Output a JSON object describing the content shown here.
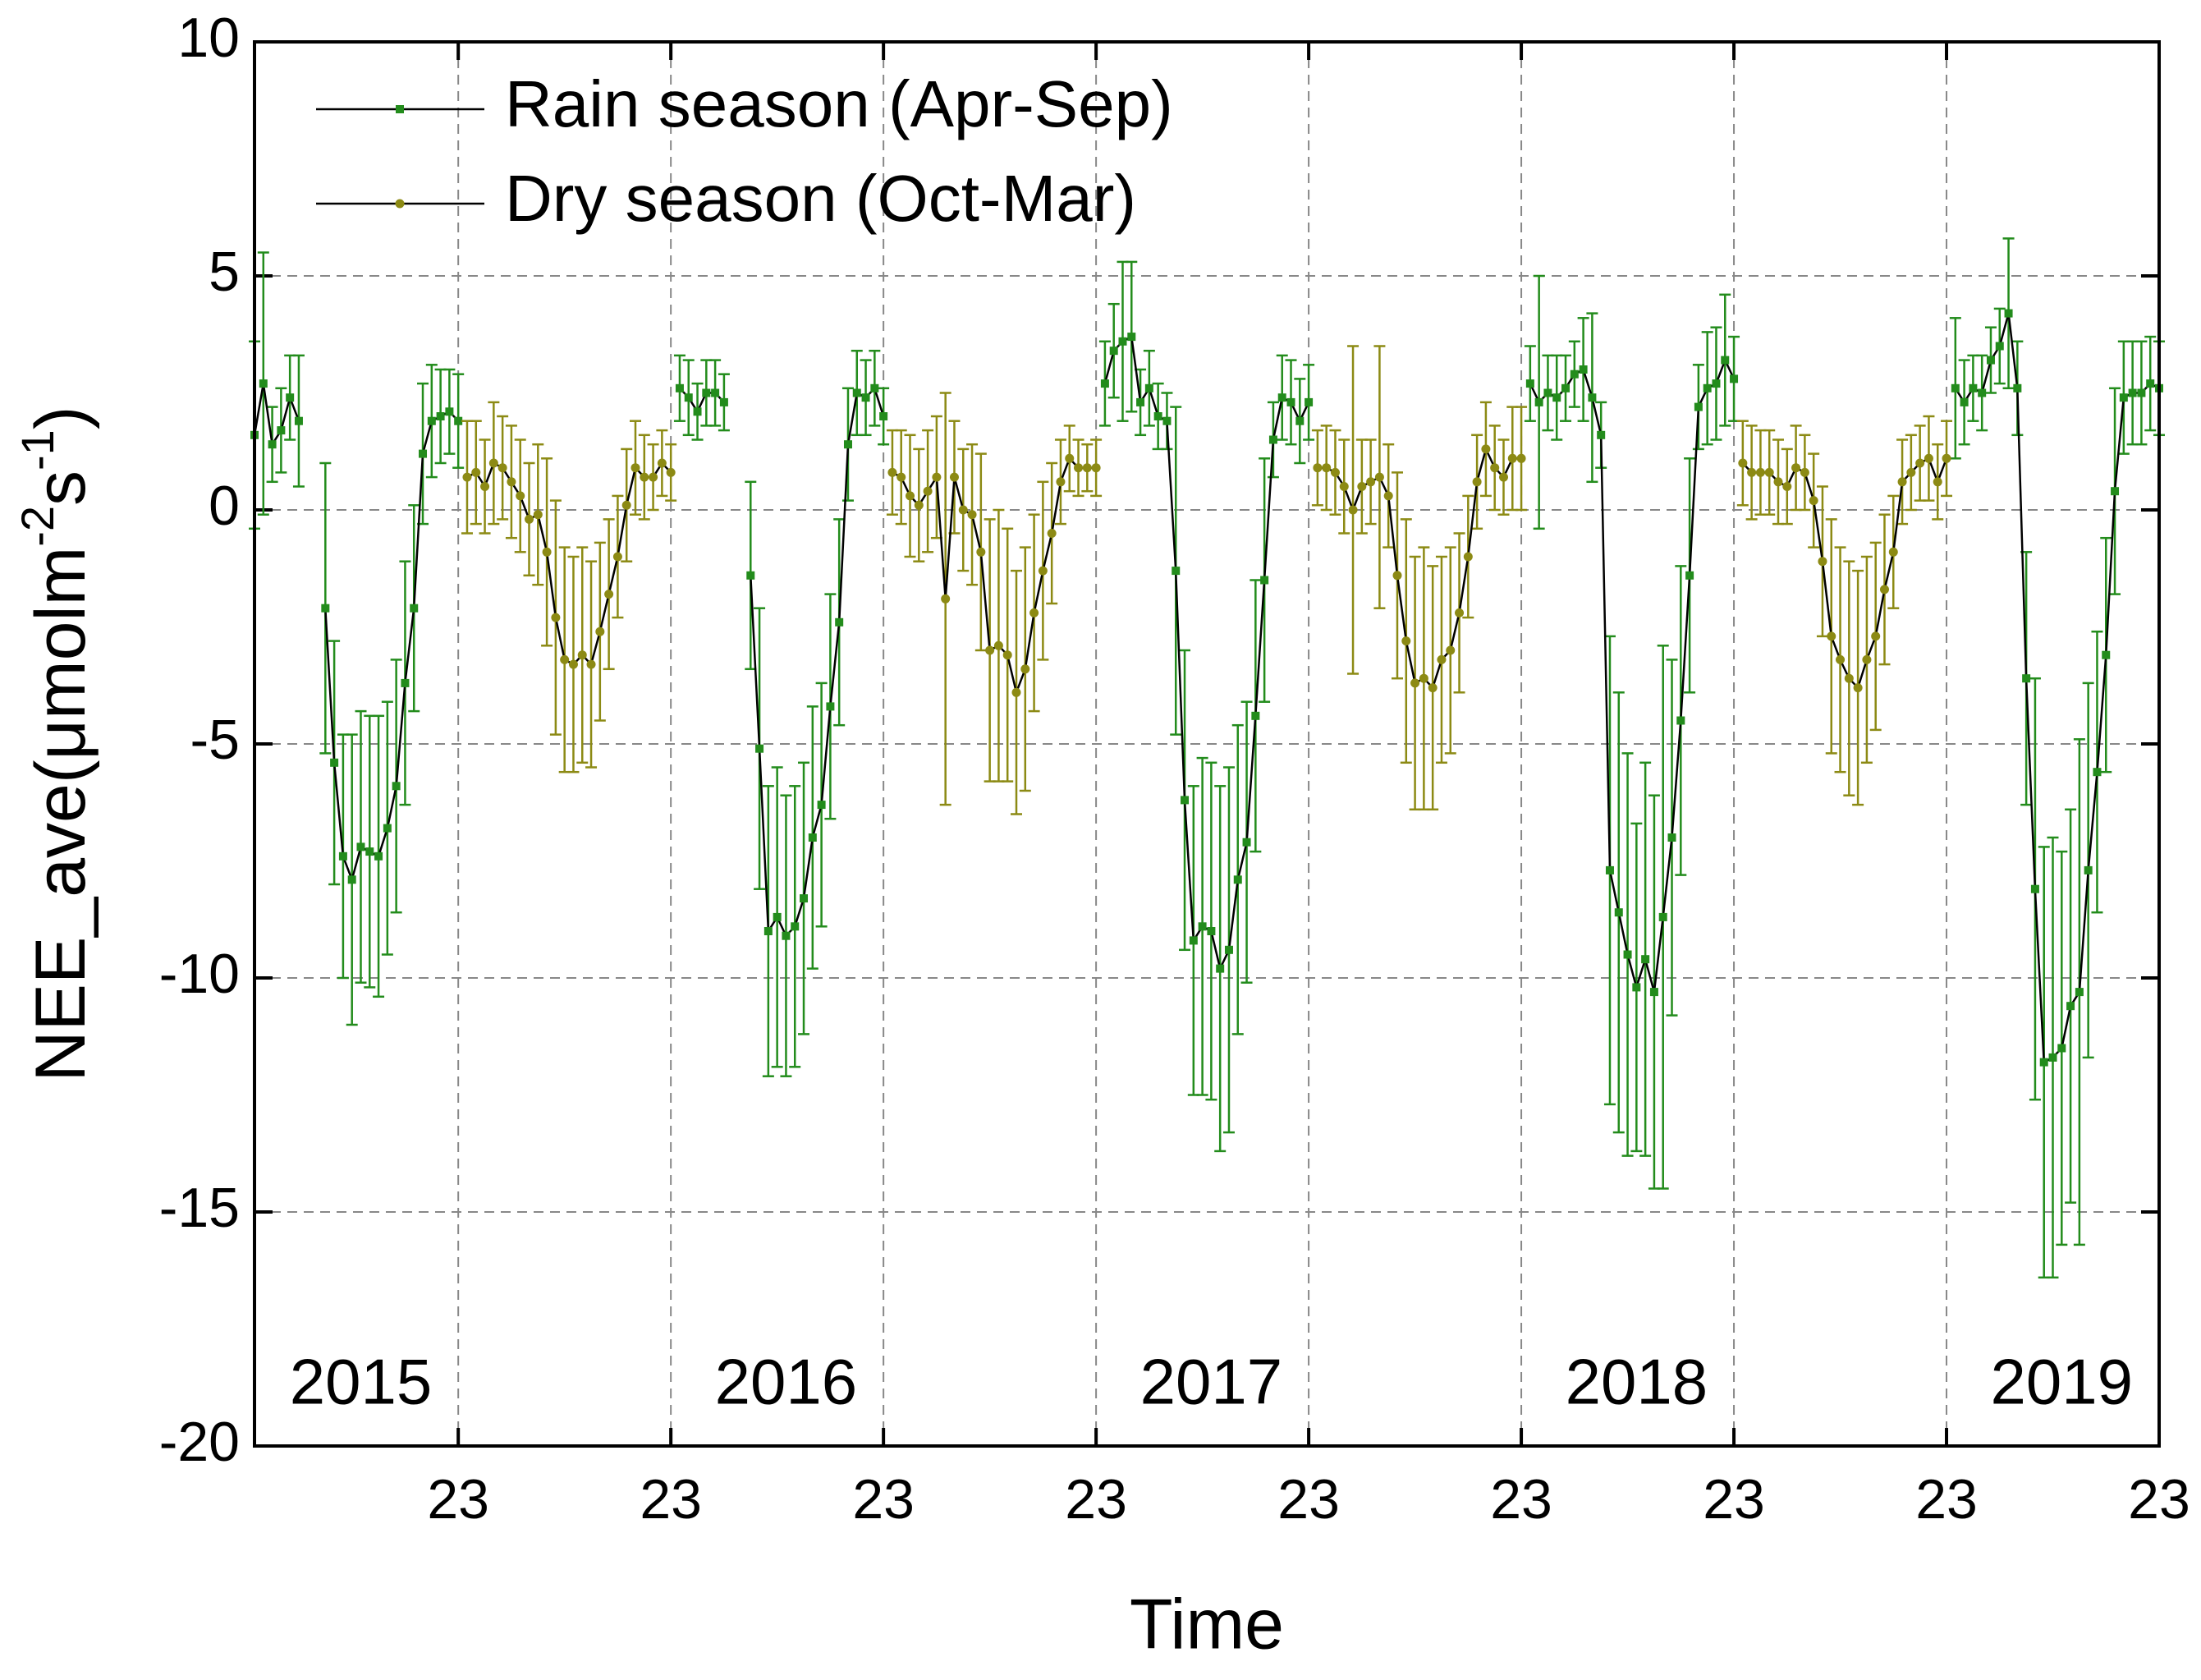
{
  "chart_data": {
    "type": "line",
    "xlabel": "Time",
    "ylabel": {
      "text": "NEE_ave(μmolm",
      "sup1": "-2",
      "mid": "s",
      "sup2": "-1",
      "end": ")"
    },
    "xlim": [
      0,
      215
    ],
    "ylim": [
      -20,
      10
    ],
    "yticks": [
      -20,
      -15,
      -10,
      -5,
      0,
      5,
      10
    ],
    "xticks": [
      {
        "value": 23,
        "label": "23"
      },
      {
        "value": 47,
        "label": "23"
      },
      {
        "value": 71,
        "label": "23"
      },
      {
        "value": 95,
        "label": "23"
      },
      {
        "value": 119,
        "label": "23"
      },
      {
        "value": 143,
        "label": "23"
      },
      {
        "value": 167,
        "label": "23"
      },
      {
        "value": 191,
        "label": "23"
      },
      {
        "value": 215,
        "label": "23"
      }
    ],
    "grid": true,
    "legend": "upper left",
    "line_color": "#000000",
    "annotations": [
      "2015",
      "2016",
      "2017",
      "2018",
      "2019"
    ],
    "x": [
      0,
      1,
      2,
      3,
      4,
      5,
      6,
      7,
      8,
      9,
      10,
      11,
      12,
      13,
      14,
      15,
      16,
      17,
      18,
      19,
      20,
      21,
      22,
      23,
      24,
      25,
      26,
      27,
      28,
      29,
      30,
      31,
      32,
      33,
      34,
      35,
      36,
      37,
      38,
      39,
      40,
      41,
      42,
      43,
      44,
      45,
      46,
      47,
      48,
      49,
      50,
      51,
      52,
      53,
      54,
      55,
      56,
      57,
      58,
      59,
      60,
      61,
      62,
      63,
      64,
      65,
      66,
      67,
      68,
      69,
      70,
      71,
      72,
      73,
      74,
      75,
      76,
      77,
      78,
      79,
      80,
      81,
      82,
      83,
      84,
      85,
      86,
      87,
      88,
      89,
      90,
      91,
      92,
      93,
      94,
      95,
      96,
      97,
      98,
      99,
      100,
      101,
      102,
      103,
      104,
      105,
      106,
      107,
      108,
      109,
      110,
      111,
      112,
      113,
      114,
      115,
      116,
      117,
      118,
      119,
      120,
      121,
      122,
      123,
      124,
      125,
      126,
      127,
      128,
      129,
      130,
      131,
      132,
      133,
      134,
      135,
      136,
      137,
      138,
      139,
      140,
      141,
      142,
      143,
      144,
      145,
      146,
      147,
      148,
      149,
      150,
      151,
      152,
      153,
      154,
      155,
      156,
      157,
      158,
      159,
      160,
      161,
      162,
      163,
      164,
      165,
      166,
      167,
      168,
      169,
      170,
      171,
      172,
      173,
      174,
      175,
      176,
      177,
      178,
      179,
      180,
      181,
      182,
      183,
      184,
      185,
      186,
      187,
      188,
      189,
      190,
      191,
      192,
      193,
      194,
      195,
      196,
      197,
      198,
      199,
      200,
      201,
      202,
      203,
      204,
      205,
      206,
      207,
      208,
      209,
      210,
      211,
      212,
      213,
      214,
      215
    ],
    "series": [
      {
        "name": "Rain season (Apr-Sep)",
        "color": "#238c1c",
        "marker": "square",
        "values": [
          1.6,
          2.7,
          1.4,
          1.7,
          2.4,
          1.9,
          null,
          null,
          -2.1,
          -5.4,
          -7.4,
          -7.9,
          -7.2,
          -7.3,
          -7.4,
          -6.8,
          -5.9,
          -3.7,
          -2.1,
          1.2,
          1.9,
          2.0,
          2.1,
          1.9,
          null,
          null,
          null,
          null,
          null,
          null,
          null,
          null,
          null,
          null,
          null,
          null,
          null,
          null,
          null,
          null,
          null,
          null,
          null,
          null,
          null,
          null,
          null,
          null,
          2.6,
          2.4,
          2.1,
          2.5,
          2.5,
          2.3,
          null,
          null,
          -1.4,
          -5.1,
          -9.0,
          -8.7,
          -9.1,
          -8.9,
          -8.3,
          -7.0,
          -6.3,
          -4.2,
          -2.4,
          1.4,
          2.5,
          2.4,
          2.6,
          2.0,
          null,
          null,
          null,
          null,
          null,
          null,
          null,
          null,
          null,
          null,
          null,
          null,
          null,
          null,
          null,
          null,
          null,
          null,
          null,
          null,
          null,
          null,
          null,
          null,
          2.7,
          3.4,
          3.6,
          3.7,
          2.3,
          2.6,
          2.0,
          1.9,
          -1.3,
          -6.2,
          -9.2,
          -8.9,
          -9.0,
          -9.8,
          -9.4,
          -7.9,
          -7.1,
          -4.4,
          -1.5,
          1.5,
          2.4,
          2.3,
          1.9,
          2.3,
          null,
          null,
          null,
          null,
          null,
          null,
          null,
          null,
          null,
          null,
          null,
          null,
          null,
          null,
          null,
          null,
          null,
          null,
          null,
          null,
          null,
          null,
          null,
          null,
          2.7,
          2.3,
          2.5,
          2.4,
          2.6,
          2.9,
          3.0,
          2.4,
          1.6,
          -7.7,
          -8.6,
          -9.5,
          -10.2,
          -9.6,
          -10.3,
          -8.7,
          -7.0,
          -4.5,
          -1.4,
          2.2,
          2.6,
          2.7,
          3.2,
          2.8,
          null,
          null,
          null,
          null,
          null,
          null,
          null,
          null,
          null,
          null,
          null,
          null,
          null,
          null,
          null,
          null,
          null,
          null,
          null,
          null,
          null,
          null,
          null,
          null,
          2.6,
          2.3,
          2.6,
          2.5,
          3.2,
          3.5,
          4.2,
          2.6,
          -3.6,
          -8.1,
          -11.8,
          -11.7,
          -11.5,
          -10.6,
          -10.3,
          -7.7,
          -5.6,
          -3.1,
          0.4,
          2.4,
          2.5,
          2.5,
          2.7,
          2.6
        ],
        "errors": [
          2.0,
          2.8,
          0.8,
          0.9,
          0.9,
          1.4,
          null,
          null,
          3.1,
          2.6,
          2.6,
          3.1,
          2.9,
          2.9,
          3.0,
          2.7,
          2.7,
          2.6,
          2.2,
          1.5,
          1.2,
          1.0,
          0.9,
          1.0,
          null,
          null,
          null,
          null,
          null,
          null,
          null,
          null,
          null,
          null,
          null,
          null,
          null,
          null,
          null,
          null,
          null,
          null,
          null,
          null,
          null,
          null,
          null,
          null,
          0.7,
          0.8,
          0.6,
          0.7,
          0.7,
          0.6,
          null,
          null,
          2.0,
          3.0,
          3.1,
          3.2,
          3.0,
          3.0,
          2.9,
          2.8,
          2.6,
          2.4,
          2.2,
          1.2,
          0.9,
          0.8,
          0.8,
          0.6,
          null,
          null,
          null,
          null,
          null,
          null,
          null,
          null,
          null,
          null,
          null,
          null,
          null,
          null,
          null,
          null,
          null,
          null,
          null,
          null,
          null,
          null,
          null,
          null,
          0.9,
          1.0,
          1.7,
          1.6,
          0.7,
          0.8,
          0.7,
          0.6,
          3.5,
          3.2,
          3.3,
          3.6,
          3.6,
          3.9,
          3.9,
          3.3,
          3.0,
          2.9,
          2.6,
          0.8,
          0.9,
          0.9,
          0.9,
          0.8,
          null,
          null,
          null,
          null,
          null,
          null,
          null,
          null,
          null,
          null,
          null,
          null,
          null,
          null,
          null,
          null,
          null,
          null,
          null,
          null,
          null,
          null,
          null,
          null,
          0.8,
          2.7,
          0.8,
          0.9,
          0.7,
          0.7,
          1.1,
          1.8,
          0.7,
          5.0,
          4.7,
          4.3,
          3.5,
          4.2,
          4.2,
          5.8,
          3.8,
          3.3,
          2.5,
          0.9,
          1.2,
          1.2,
          1.4,
          0.9,
          null,
          null,
          null,
          null,
          null,
          null,
          null,
          null,
          null,
          null,
          null,
          null,
          null,
          null,
          null,
          null,
          null,
          null,
          null,
          null,
          null,
          null,
          null,
          null,
          1.5,
          0.9,
          0.7,
          0.8,
          0.7,
          0.8,
          1.6,
          1.0,
          2.7,
          4.5,
          4.6,
          4.7,
          4.2,
          4.2,
          5.4,
          4.0,
          3.0,
          2.5,
          2.2,
          1.2,
          1.1,
          1.1,
          1.0,
          1.0
        ]
      },
      {
        "name": "Dry season (Oct-Mar)",
        "color": "#8c8a14",
        "marker": "circle",
        "values": [
          null,
          null,
          null,
          null,
          null,
          null,
          null,
          null,
          null,
          null,
          null,
          null,
          null,
          null,
          null,
          null,
          null,
          null,
          null,
          null,
          null,
          null,
          null,
          null,
          0.7,
          0.8,
          0.5,
          1.0,
          0.9,
          0.6,
          0.3,
          -0.2,
          -0.1,
          -0.9,
          -2.3,
          -3.2,
          -3.3,
          -3.1,
          -3.3,
          -2.6,
          -1.8,
          -1.0,
          0.1,
          0.9,
          0.7,
          0.7,
          1.0,
          0.8,
          null,
          null,
          null,
          null,
          null,
          null,
          null,
          null,
          null,
          null,
          null,
          null,
          null,
          null,
          null,
          null,
          null,
          null,
          null,
          null,
          null,
          null,
          null,
          null,
          0.8,
          0.7,
          0.3,
          0.1,
          0.4,
          0.7,
          -1.9,
          0.7,
          0.0,
          -0.1,
          -0.9,
          -3.0,
          -2.9,
          -3.1,
          -3.9,
          -3.4,
          -2.2,
          -1.3,
          -0.5,
          0.6,
          1.1,
          0.9,
          0.9,
          0.9,
          null,
          null,
          null,
          null,
          null,
          null,
          null,
          null,
          null,
          null,
          null,
          null,
          null,
          null,
          null,
          null,
          null,
          null,
          null,
          null,
          null,
          null,
          null,
          null,
          0.9,
          0.9,
          0.8,
          0.5,
          0.0,
          0.5,
          0.6,
          0.7,
          0.3,
          -1.4,
          -2.8,
          -3.7,
          -3.6,
          -3.8,
          -3.2,
          -3.0,
          -2.2,
          -1.0,
          0.6,
          1.3,
          0.9,
          0.7,
          1.1,
          1.1,
          null,
          null,
          null,
          null,
          null,
          null,
          null,
          null,
          null,
          null,
          null,
          null,
          null,
          null,
          null,
          null,
          null,
          null,
          null,
          null,
          null,
          null,
          null,
          null,
          1.0,
          0.8,
          0.8,
          0.8,
          0.6,
          0.5,
          0.9,
          0.8,
          0.2,
          -1.1,
          -2.7,
          -3.2,
          -3.6,
          -3.8,
          -3.2,
          -2.7,
          -1.7,
          -0.9,
          0.6,
          0.8,
          1.0,
          1.1,
          0.6,
          1.1,
          null,
          null,
          null,
          null,
          null,
          null,
          null,
          null,
          null,
          null,
          null,
          null,
          null,
          null,
          null,
          null,
          null,
          null,
          null,
          null,
          null,
          null,
          null,
          null
        ],
        "errors": [
          null,
          null,
          null,
          null,
          null,
          null,
          null,
          null,
          null,
          null,
          null,
          null,
          null,
          null,
          null,
          null,
          null,
          null,
          null,
          null,
          null,
          null,
          null,
          null,
          1.2,
          1.1,
          1.0,
          1.3,
          1.1,
          1.2,
          1.2,
          1.2,
          1.5,
          2.0,
          2.5,
          2.4,
          2.3,
          2.3,
          2.2,
          1.9,
          1.6,
          1.3,
          1.2,
          1.0,
          0.9,
          0.7,
          0.7,
          0.6,
          null,
          null,
          null,
          null,
          null,
          null,
          null,
          null,
          null,
          null,
          null,
          null,
          null,
          null,
          null,
          null,
          null,
          null,
          null,
          null,
          null,
          null,
          null,
          null,
          0.9,
          1.0,
          1.3,
          1.2,
          1.3,
          1.3,
          4.4,
          1.2,
          1.3,
          1.5,
          2.1,
          2.8,
          2.9,
          2.7,
          2.6,
          2.6,
          2.1,
          1.9,
          1.5,
          0.9,
          0.7,
          0.6,
          0.5,
          0.6,
          null,
          null,
          null,
          null,
          null,
          null,
          null,
          null,
          null,
          null,
          null,
          null,
          null,
          null,
          null,
          null,
          null,
          null,
          null,
          null,
          null,
          null,
          null,
          null,
          0.8,
          0.9,
          0.9,
          1.0,
          3.5,
          1.0,
          0.9,
          2.8,
          1.1,
          2.2,
          2.6,
          2.7,
          2.8,
          2.6,
          2.2,
          2.2,
          1.7,
          1.3,
          1.0,
          1.0,
          0.9,
          0.8,
          1.1,
          1.1,
          null,
          null,
          null,
          null,
          null,
          null,
          null,
          null,
          null,
          null,
          null,
          null,
          null,
          null,
          null,
          null,
          null,
          null,
          null,
          null,
          null,
          null,
          null,
          null,
          0.9,
          1.0,
          0.9,
          0.9,
          0.9,
          0.8,
          0.9,
          0.8,
          1.0,
          1.6,
          2.5,
          2.4,
          2.5,
          2.5,
          2.2,
          2.0,
          1.6,
          1.2,
          0.9,
          0.8,
          0.8,
          0.9,
          0.8,
          0.8,
          null,
          null,
          null,
          null,
          null,
          null,
          null,
          null,
          null,
          null,
          null,
          null,
          null,
          null,
          null,
          null,
          null,
          null,
          null,
          null,
          null,
          null,
          null,
          null
        ]
      }
    ]
  }
}
